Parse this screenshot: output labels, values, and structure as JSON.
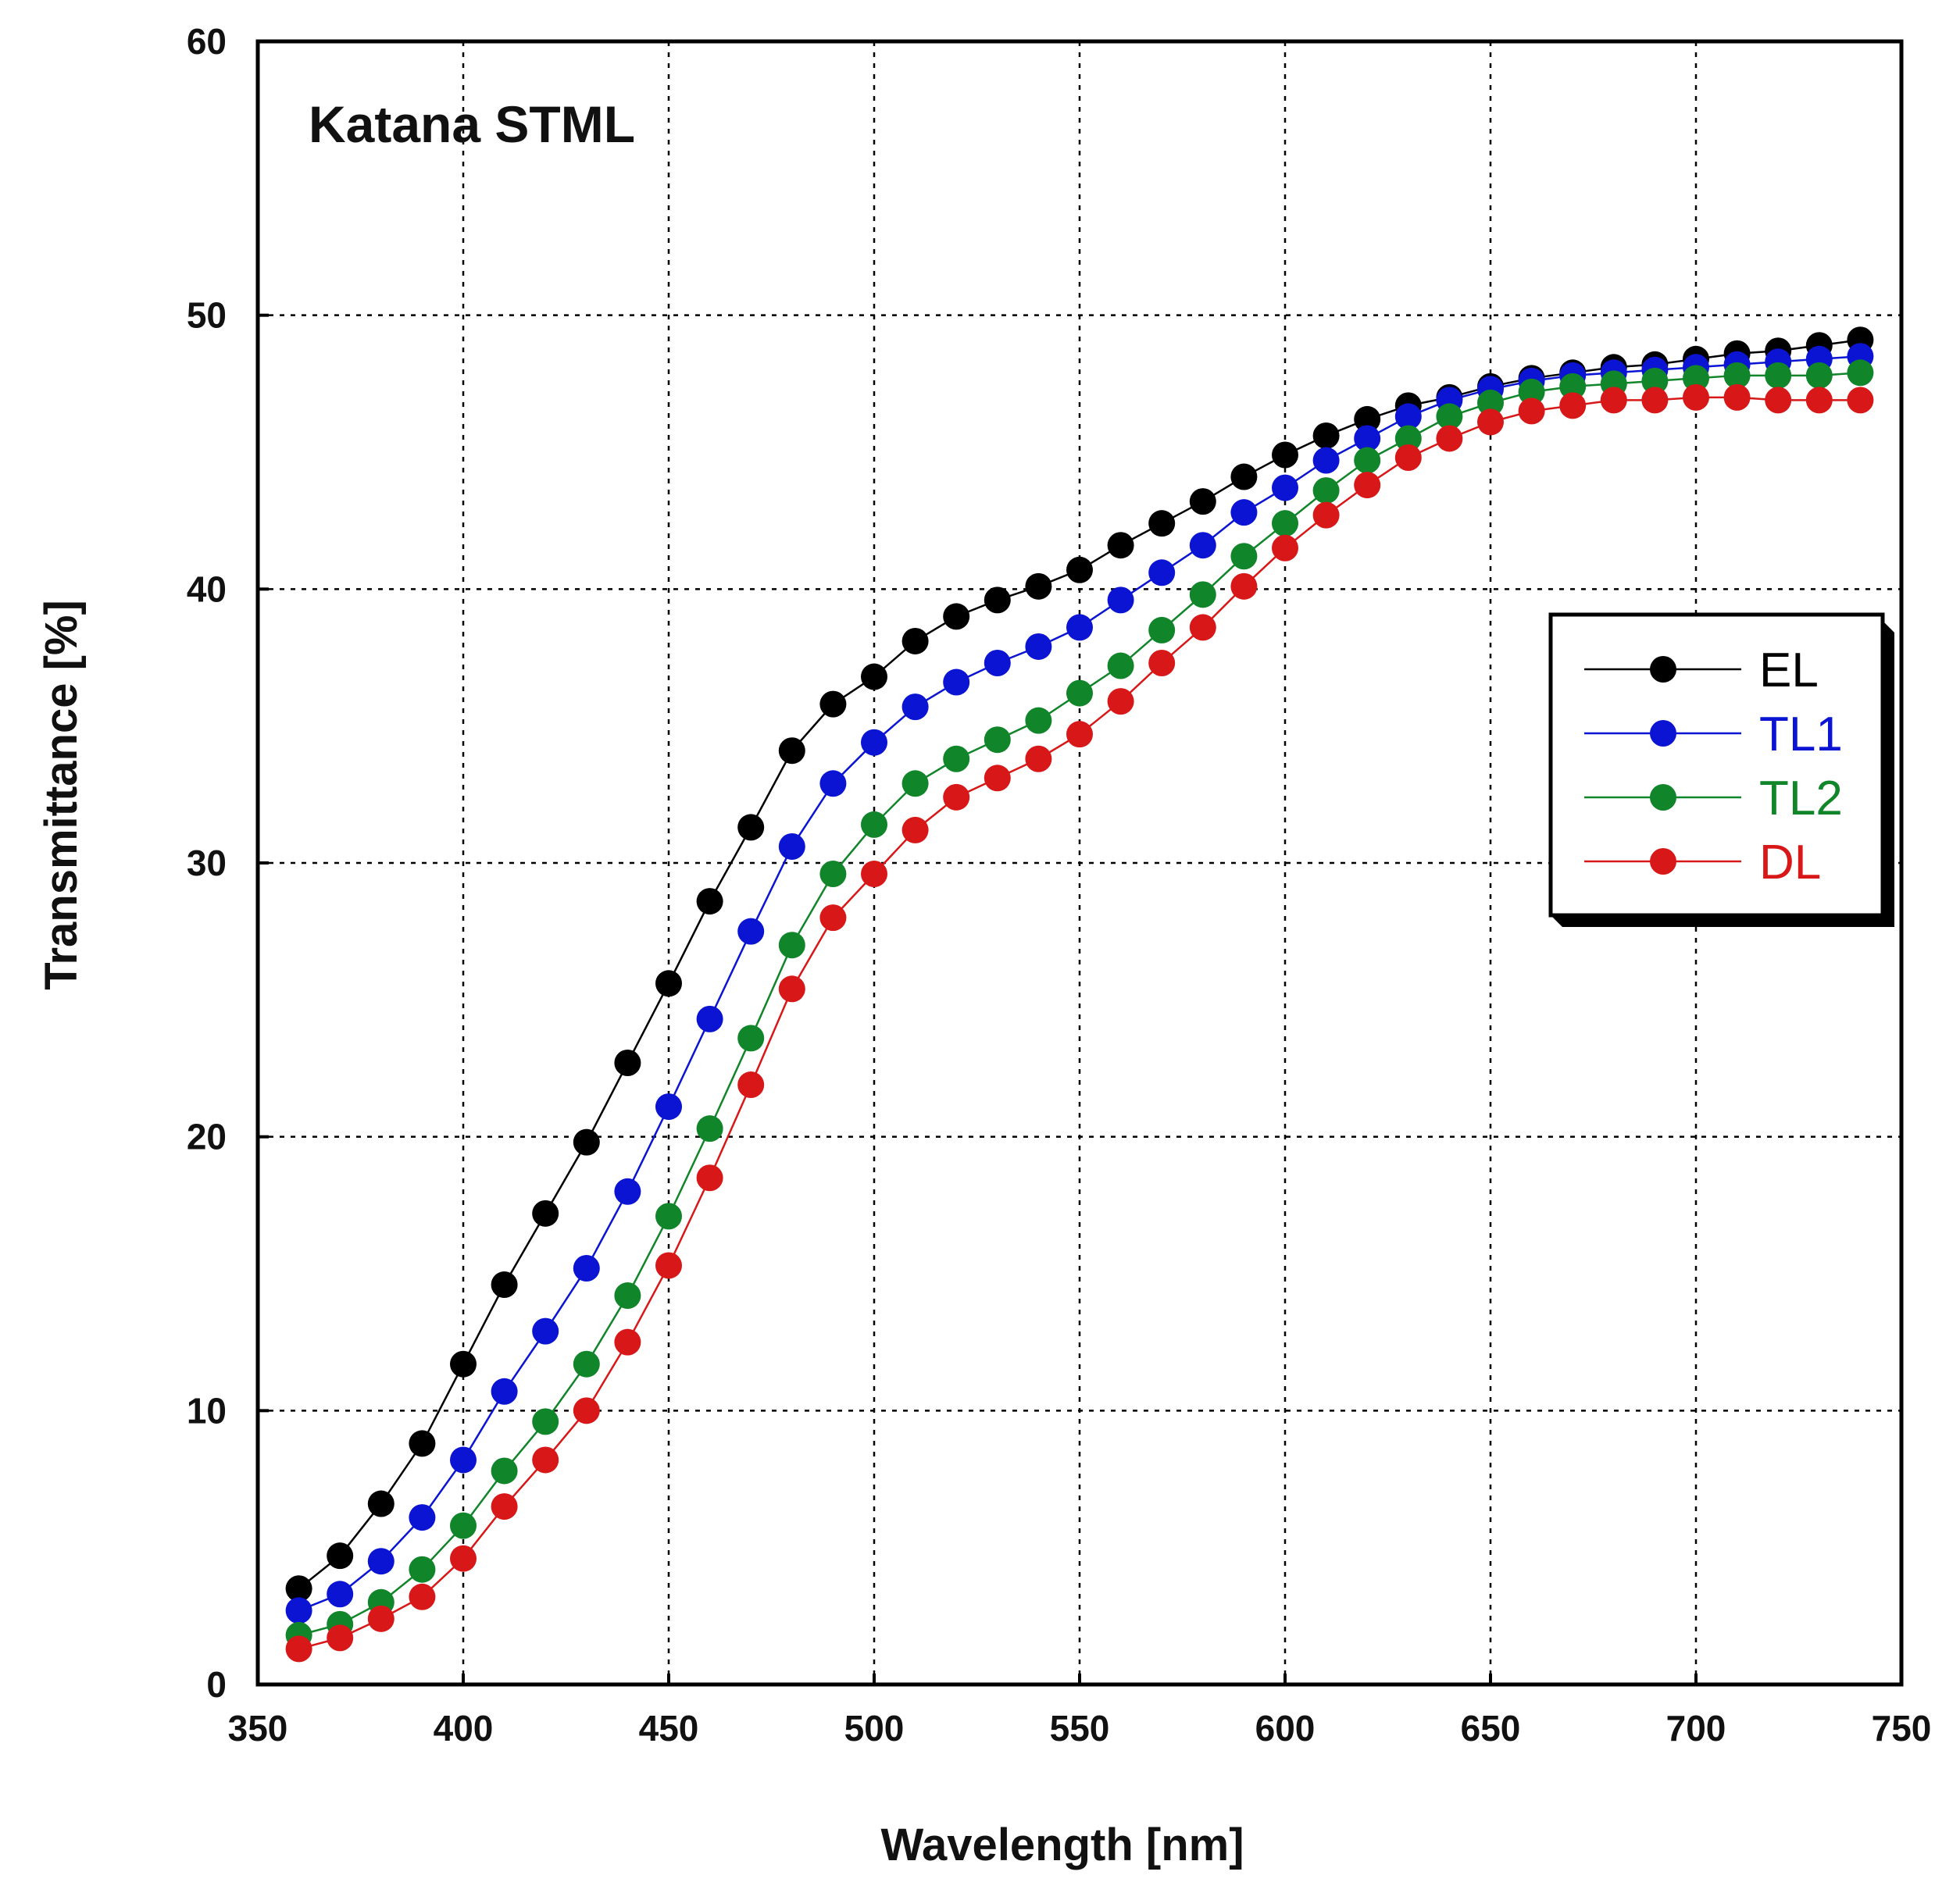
{
  "chart_data": {
    "type": "line",
    "title": "Katana STML",
    "xlabel": "Wavelength [nm]",
    "ylabel": "Transmittance [%]",
    "xlim": [
      350,
      750
    ],
    "ylim": [
      0,
      60
    ],
    "xticks": [
      "350",
      "400",
      "450",
      "500",
      "550",
      "600",
      "650",
      "700",
      "750"
    ],
    "yticks": [
      "0",
      "10",
      "20",
      "30",
      "40",
      "50",
      "60"
    ],
    "grid": true,
    "legend_position": "center-right",
    "x": [
      360,
      370,
      380,
      390,
      400,
      410,
      420,
      430,
      440,
      450,
      460,
      470,
      480,
      490,
      500,
      510,
      520,
      530,
      540,
      550,
      560,
      570,
      580,
      590,
      600,
      610,
      620,
      630,
      640,
      650,
      660,
      670,
      680,
      690,
      700,
      710,
      720,
      730,
      740
    ],
    "series": [
      {
        "name": "EL",
        "color": "#000000",
        "values": [
          3.5,
          4.7,
          6.6,
          8.8,
          11.7,
          14.6,
          17.2,
          19.8,
          22.7,
          25.6,
          28.6,
          31.3,
          34.1,
          35.8,
          36.8,
          38.1,
          39.0,
          39.6,
          40.1,
          40.7,
          41.6,
          42.4,
          43.2,
          44.1,
          44.9,
          45.6,
          46.2,
          46.7,
          47.0,
          47.4,
          47.7,
          47.9,
          48.1,
          48.2,
          48.4,
          48.6,
          48.7,
          48.9,
          49.1
        ]
      },
      {
        "name": "TL1",
        "color": "#0a14d2",
        "values": [
          2.7,
          3.3,
          4.5,
          6.1,
          8.2,
          10.7,
          12.9,
          15.2,
          18.0,
          21.1,
          24.3,
          27.5,
          30.6,
          32.9,
          34.4,
          35.7,
          36.6,
          37.3,
          37.9,
          38.6,
          39.6,
          40.6,
          41.6,
          42.8,
          43.7,
          44.7,
          45.5,
          46.3,
          46.9,
          47.3,
          47.6,
          47.8,
          47.9,
          48.0,
          48.1,
          48.2,
          48.3,
          48.4,
          48.5
        ]
      },
      {
        "name": "TL2",
        "color": "#11852a",
        "values": [
          1.8,
          2.2,
          3.0,
          4.2,
          5.8,
          7.8,
          9.6,
          11.7,
          14.2,
          17.1,
          20.3,
          23.6,
          27.0,
          29.6,
          31.4,
          32.9,
          33.8,
          34.5,
          35.2,
          36.2,
          37.2,
          38.5,
          39.8,
          41.2,
          42.4,
          43.6,
          44.7,
          45.5,
          46.3,
          46.8,
          47.2,
          47.4,
          47.5,
          47.6,
          47.7,
          47.8,
          47.8,
          47.8,
          47.9
        ]
      },
      {
        "name": "DL",
        "color": "#d81818",
        "values": [
          1.3,
          1.7,
          2.4,
          3.2,
          4.6,
          6.5,
          8.2,
          10.0,
          12.5,
          15.3,
          18.5,
          21.9,
          25.4,
          28.0,
          29.6,
          31.2,
          32.4,
          33.1,
          33.8,
          34.7,
          35.9,
          37.3,
          38.6,
          40.1,
          41.5,
          42.7,
          43.8,
          44.8,
          45.5,
          46.1,
          46.5,
          46.7,
          46.9,
          46.9,
          47.0,
          47.0,
          46.9,
          46.9,
          46.9
        ]
      }
    ]
  }
}
